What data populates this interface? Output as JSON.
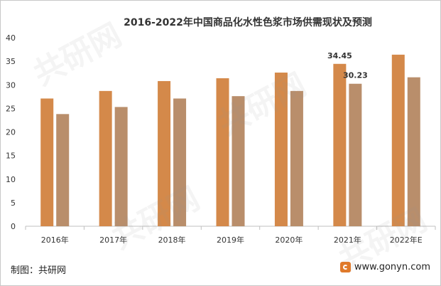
{
  "chart_data": {
    "type": "bar",
    "title": "2016-2022年中国商品化水性色浆市场供需现状及预测",
    "categories": [
      "2016年",
      "2017年",
      "2018年",
      "2019年",
      "2020年",
      "2021年",
      "2022年E"
    ],
    "series": [
      {
        "color": "#d4894a",
        "values": [
          27.1,
          28.7,
          30.8,
          31.4,
          32.6,
          34.45,
          36.4
        ]
      },
      {
        "color": "#b98e6b",
        "values": [
          23.8,
          25.3,
          27.1,
          27.6,
          28.7,
          30.23,
          31.6
        ]
      }
    ],
    "data_labels": [
      {
        "series": 0,
        "category": 5,
        "text": "34.45"
      },
      {
        "series": 1,
        "category": 5,
        "text": "30.23"
      }
    ],
    "ylim": [
      0,
      40
    ],
    "yticks": [
      0,
      5,
      10,
      15,
      20,
      25,
      30,
      35,
      40
    ],
    "grid": false,
    "xlabel": "",
    "ylabel": ""
  },
  "footer": {
    "source": "制图：共研网",
    "website": "www.gonyn.com"
  },
  "watermark": "共研网"
}
